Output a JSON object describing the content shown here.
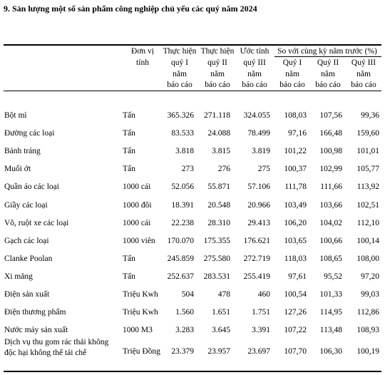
{
  "title": "9. Sản lượng một số sản phẩm công nghiệp chủ yếu các quý năm 2024",
  "table": {
    "header": {
      "unit": [
        "Đơn vị",
        "tính"
      ],
      "columns": [
        [
          "Thực hiện",
          "quý I",
          "năm",
          "báo cáo"
        ],
        [
          "Thực hiện",
          "quý II",
          "năm",
          "báo cáo"
        ],
        [
          "Ước tính",
          "quý III",
          "năm",
          "báo cáo"
        ]
      ],
      "group": "So với cùng kỳ năm trước (%)",
      "subcolumns": [
        [
          "Quý I",
          "năm",
          "báo cáo"
        ],
        [
          "Quý II",
          "năm",
          "báo cáo"
        ],
        [
          "Quý III",
          "năm",
          "báo cáo"
        ]
      ]
    },
    "rows": [
      [
        "Bột mì",
        "Tấn",
        "365.326",
        "271.118",
        "324.055",
        "108,03",
        "107,56",
        "99,36"
      ],
      [
        "Đường các loại",
        "Tấn",
        "83.533",
        "24.088",
        "78.499",
        "97,16",
        "166,48",
        "159,60"
      ],
      [
        "Bánh tráng",
        "Tấn",
        "3.818",
        "3.815",
        "3.819",
        "101,22",
        "100,98",
        "101,01"
      ],
      [
        "Muối ớt",
        "Tấn",
        "273",
        "276",
        "275",
        "100,37",
        "102,99",
        "105,77"
      ],
      [
        "Quần áo các loại",
        "1000 cái",
        "52.056",
        "55.871",
        "57.106",
        "111,78",
        "111,66",
        "113,92"
      ],
      [
        "Giầy các loại",
        "1000 đôi",
        "18.391",
        "20.548",
        "20.966",
        "103,49",
        "103,66",
        "102,51"
      ],
      [
        "Võ, ruột xe các loại",
        "1000 cái",
        "22.238",
        "28.310",
        "29.413",
        "106,20",
        "104,02",
        "112,10"
      ],
      [
        "Gạch các loại",
        "1000 viên",
        "170.070",
        "175.355",
        "176.621",
        "103,65",
        "100,66",
        "100,14"
      ],
      [
        "Clanke Poolan",
        "Tấn",
        "245.859",
        "275.580",
        "272.719",
        "118,03",
        "108,65",
        "108,00"
      ],
      [
        "Xi măng",
        "Tấn",
        "252.637",
        "283.531",
        "255.419",
        "97,61",
        "95,52",
        "97,20"
      ],
      [
        "Điện sản xuất",
        "Triệu Kwh",
        "504",
        "478",
        "460",
        "100,54",
        "101,33",
        "99,03"
      ],
      [
        "Điện thương phẩm",
        "Triệu Kwh",
        "1.560",
        "1.651",
        "1.751",
        "127,26",
        "114,95",
        "112,86"
      ],
      [
        "Nước máy sản xuất",
        "1000 M3",
        "3.283",
        "3.645",
        "3.391",
        "107,22",
        "113,48",
        "108,93"
      ],
      [
        "Dịch vụ thu gom rác thải không độc hại không thể tái chế",
        "Triệu Đồng",
        "23.379",
        "23.957",
        "23.697",
        "107,70",
        "106,30",
        "100,19"
      ]
    ]
  }
}
